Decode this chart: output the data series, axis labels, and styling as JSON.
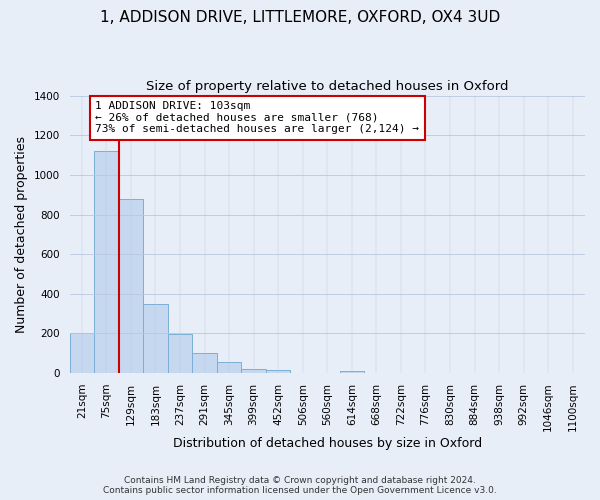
{
  "title": "1, ADDISON DRIVE, LITTLEMORE, OXFORD, OX4 3UD",
  "subtitle": "Size of property relative to detached houses in Oxford",
  "xlabel": "Distribution of detached houses by size in Oxford",
  "ylabel": "Number of detached properties",
  "bar_labels": [
    "21sqm",
    "75sqm",
    "129sqm",
    "183sqm",
    "237sqm",
    "291sqm",
    "345sqm",
    "399sqm",
    "452sqm",
    "506sqm",
    "560sqm",
    "614sqm",
    "668sqm",
    "722sqm",
    "776sqm",
    "830sqm",
    "884sqm",
    "938sqm",
    "992sqm",
    "1046sqm",
    "1100sqm"
  ],
  "bar_values": [
    200,
    1120,
    880,
    350,
    195,
    100,
    55,
    20,
    15,
    0,
    0,
    10,
    0,
    0,
    0,
    0,
    0,
    0,
    0,
    0,
    0
  ],
  "bar_color": "#c5d8ef",
  "bar_edge_color": "#7aafd4",
  "vline_color": "#cc0000",
  "annotation_text": "1 ADDISON DRIVE: 103sqm\n← 26% of detached houses are smaller (768)\n73% of semi-detached houses are larger (2,124) →",
  "annotation_box_color": "#ffffff",
  "annotation_box_edge": "#cc0000",
  "ylim": [
    0,
    1400
  ],
  "yticks": [
    0,
    200,
    400,
    600,
    800,
    1000,
    1200,
    1400
  ],
  "footer": "Contains HM Land Registry data © Crown copyright and database right 2024.\nContains public sector information licensed under the Open Government Licence v3.0.",
  "bg_color": "#e8eef8",
  "plot_bg_color": "#e8eef8",
  "title_fontsize": 11,
  "subtitle_fontsize": 9.5,
  "axis_label_fontsize": 9,
  "tick_fontsize": 7.5,
  "footer_fontsize": 6.5,
  "annotation_fontsize": 8,
  "vline_x_index": 1.5
}
